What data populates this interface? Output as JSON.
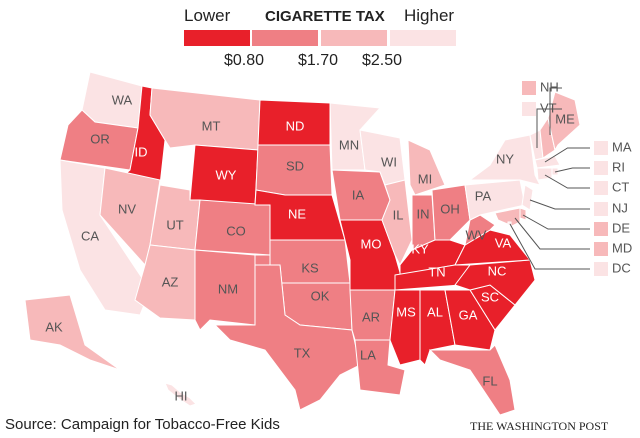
{
  "legend": {
    "title": "CIGARETTE TAX",
    "low": "Lower",
    "high": "Higher",
    "ticks": [
      "$0.80",
      "$1.70",
      "$2.50"
    ],
    "colors": [
      "#e8202a",
      "#ef7f84",
      "#f7b9ba",
      "#fbe3e4"
    ]
  },
  "states": {
    "WA": 4,
    "OR": 2,
    "CA": 4,
    "ID": 1,
    "NV": 3,
    "MT": 3,
    "WY": 1,
    "UT": 3,
    "AZ": 3,
    "CO": 2,
    "NM": 2,
    "ND": 1,
    "SD": 2,
    "NE": 1,
    "KS": 2,
    "OK": 2,
    "TX": 2,
    "MN": 4,
    "IA": 2,
    "MO": 1,
    "AR": 2,
    "LA": 2,
    "WI": 4,
    "IL": 3,
    "MI": 3,
    "IN": 2,
    "OH": 2,
    "KY": 1,
    "TN": 1,
    "MS": 1,
    "AL": 1,
    "GA": 1,
    "FL": 2,
    "SC": 1,
    "NC": 1,
    "VA": 1,
    "WV": 2,
    "PA": 4,
    "NY": 4,
    "VT": 4,
    "NH": 3,
    "ME": 3,
    "MA": 4,
    "RI": 4,
    "CT": 4,
    "NJ": 4,
    "DE": 3,
    "MD": 3,
    "DC": 4,
    "AK": 3,
    "HI": 4
  },
  "callouts": [
    "NH",
    "VT",
    "MA",
    "RI",
    "CT",
    "NJ",
    "DE",
    "MD",
    "DC"
  ],
  "footer": {
    "source": "Source: Campaign for Tobacco-Free Kids",
    "brand": "THE WASHINGTON POST"
  }
}
